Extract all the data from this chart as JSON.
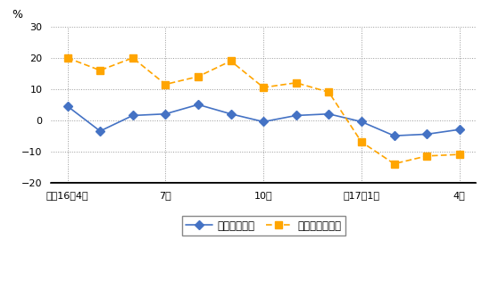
{
  "x_tick_labels": [
    "平成16年4月",
    "7月",
    "10月",
    "平17年1月",
    "4月"
  ],
  "x_tick_positions": [
    0,
    3,
    6,
    9,
    12
  ],
  "blue_data": [
    4.5,
    -3.5,
    1.5,
    2.0,
    5.0,
    2.0,
    -0.5,
    1.5,
    2.0,
    -0.5,
    -5.0,
    -4.5,
    -3.0
  ],
  "orange_data": [
    20.0,
    16.0,
    20.0,
    11.5,
    14.0,
    19.0,
    10.5,
    12.0,
    9.0,
    -7.0,
    -14.0,
    -11.5,
    -11.0
  ],
  "ylim": [
    -20,
    30
  ],
  "yticks": [
    -20,
    -10,
    0,
    10,
    20,
    30
  ],
  "ylabel": "%",
  "blue_color": "#4472C4",
  "orange_color": "#FFA500",
  "bg_color": "#FFFFFF",
  "legend_blue": "総実労働時間",
  "legend_orange": "所定外労働時間",
  "grid_color": "#999999"
}
